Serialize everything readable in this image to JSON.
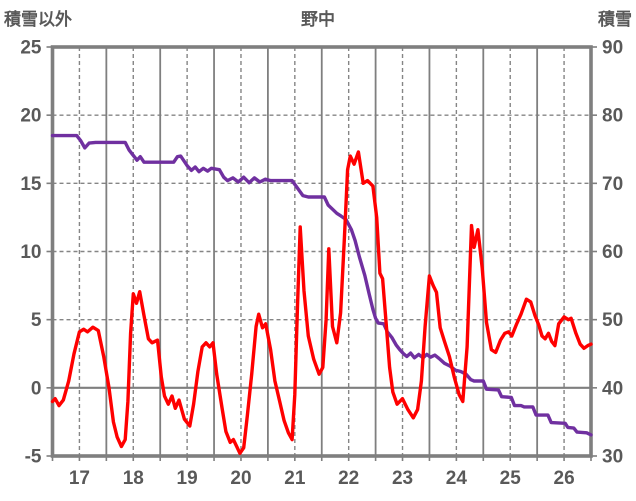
{
  "header": {
    "left_axis_title": "積雪以外",
    "title": "野中",
    "right_axis_title": "積雪"
  },
  "chart_data": {
    "type": "line",
    "title": "野中",
    "grid": "on",
    "legend": "none",
    "colors": {
      "red_series": "#ff0000",
      "purple_series": "#7030a0",
      "grid_solid": "#7f7f7f",
      "grid_dashed": "#858585",
      "border": "#7f7f7f",
      "text": "#595959"
    },
    "x_axis": {
      "min": 16.5,
      "max": 26.5,
      "tick_labels": [
        "17",
        "18",
        "19",
        "20",
        "21",
        "22",
        "23",
        "24",
        "25",
        "26"
      ],
      "tick_values": [
        17,
        18,
        19,
        20,
        21,
        22,
        23,
        24,
        25,
        26
      ],
      "solid_gridlines": [
        17.5,
        18.5,
        19.5,
        20.5,
        21.5,
        22.5,
        23.5,
        24.5,
        25.5
      ],
      "dashed_gridlines": [
        17,
        18,
        19,
        20,
        21,
        22,
        23,
        24,
        25,
        26
      ],
      "outer_tick_step": 0.5
    },
    "left_axis": {
      "label": "積雪以外",
      "min": -5,
      "max": 25,
      "tick_labels": [
        "25",
        "20",
        "15",
        "10",
        "5",
        "0",
        "-5"
      ],
      "tick_values": [
        25,
        20,
        15,
        10,
        5,
        0,
        -5
      ],
      "dashed_gridlines": [
        20,
        15,
        10,
        5
      ],
      "solid_gridlines": [
        0
      ]
    },
    "right_axis": {
      "label": "積雪",
      "min": 30,
      "max": 90,
      "tick_labels": [
        "90",
        "80",
        "70",
        "60",
        "50",
        "40",
        "30"
      ],
      "tick_values": [
        90,
        80,
        70,
        60,
        50,
        40,
        30
      ]
    },
    "series": [
      {
        "name": "積雪",
        "axis": "right",
        "color": "#7030a0",
        "width": 3.4,
        "points": [
          [
            16.5,
            77
          ],
          [
            16.95,
            77
          ],
          [
            17.02,
            76.3
          ],
          [
            17.1,
            75.2
          ],
          [
            17.18,
            75.9
          ],
          [
            17.3,
            76
          ],
          [
            17.85,
            76
          ],
          [
            17.92,
            74.9
          ],
          [
            18.0,
            74.1
          ],
          [
            18.07,
            73.4
          ],
          [
            18.13,
            73.9
          ],
          [
            18.2,
            73.1
          ],
          [
            18.75,
            73.1
          ],
          [
            18.82,
            73.9
          ],
          [
            18.88,
            74.0
          ],
          [
            18.94,
            73.3
          ],
          [
            19.0,
            72.6
          ],
          [
            19.08,
            71.9
          ],
          [
            19.15,
            72.4
          ],
          [
            19.22,
            71.7
          ],
          [
            19.3,
            72.2
          ],
          [
            19.38,
            71.8
          ],
          [
            19.45,
            72.2
          ],
          [
            19.6,
            72.0
          ],
          [
            19.68,
            70.9
          ],
          [
            19.75,
            70.4
          ],
          [
            19.85,
            70.8
          ],
          [
            19.95,
            70.2
          ],
          [
            20.05,
            70.9
          ],
          [
            20.15,
            70.1
          ],
          [
            20.25,
            70.8
          ],
          [
            20.35,
            70.2
          ],
          [
            20.45,
            70.6
          ],
          [
            20.55,
            70.4
          ],
          [
            20.95,
            70.4
          ],
          [
            21.05,
            69.3
          ],
          [
            21.15,
            68.2
          ],
          [
            21.25,
            68.0
          ],
          [
            21.55,
            68.0
          ],
          [
            21.62,
            66.8
          ],
          [
            21.7,
            66.2
          ],
          [
            21.78,
            65.6
          ],
          [
            21.86,
            65.2
          ],
          [
            21.95,
            64.7
          ],
          [
            22.05,
            63.2
          ],
          [
            22.12,
            61.6
          ],
          [
            22.2,
            59.2
          ],
          [
            22.3,
            56.5
          ],
          [
            22.38,
            53.8
          ],
          [
            22.45,
            51.5
          ],
          [
            22.5,
            50.2
          ],
          [
            22.55,
            49.5
          ],
          [
            22.65,
            49.4
          ],
          [
            22.72,
            48.2
          ],
          [
            22.8,
            47.4
          ],
          [
            22.88,
            46.3
          ],
          [
            22.95,
            45.6
          ],
          [
            23.02,
            45.0
          ],
          [
            23.08,
            44.6
          ],
          [
            23.15,
            45.1
          ],
          [
            23.22,
            44.4
          ],
          [
            23.3,
            44.9
          ],
          [
            23.38,
            44.4
          ],
          [
            23.45,
            44.9
          ],
          [
            23.52,
            44.5
          ],
          [
            23.6,
            44.8
          ],
          [
            23.68,
            44.3
          ],
          [
            23.78,
            43.6
          ],
          [
            23.88,
            43.2
          ],
          [
            23.98,
            42.6
          ],
          [
            24.08,
            42.4
          ],
          [
            24.18,
            42.0
          ],
          [
            24.27,
            41.2
          ],
          [
            24.33,
            41.0
          ],
          [
            24.5,
            41.0
          ],
          [
            24.56,
            39.8
          ],
          [
            24.78,
            39.7
          ],
          [
            24.84,
            38.7
          ],
          [
            25.02,
            38.6
          ],
          [
            25.08,
            37.4
          ],
          [
            25.2,
            37.4
          ],
          [
            25.26,
            37.2
          ],
          [
            25.42,
            37.2
          ],
          [
            25.48,
            36.0
          ],
          [
            25.7,
            36.0
          ],
          [
            25.76,
            34.9
          ],
          [
            26.02,
            34.8
          ],
          [
            26.07,
            34.2
          ],
          [
            26.18,
            34.1
          ],
          [
            26.24,
            33.5
          ],
          [
            26.42,
            33.4
          ],
          [
            26.5,
            33.1
          ]
        ]
      },
      {
        "name": "積雪以外",
        "axis": "left",
        "color": "#ff0000",
        "width": 3.4,
        "points": [
          [
            16.5,
            -1.0
          ],
          [
            16.55,
            -0.8
          ],
          [
            16.62,
            -1.3
          ],
          [
            16.7,
            -0.9
          ],
          [
            16.8,
            0.5
          ],
          [
            16.9,
            2.5
          ],
          [
            17.0,
            4.1
          ],
          [
            17.08,
            4.3
          ],
          [
            17.15,
            4.1
          ],
          [
            17.25,
            4.45
          ],
          [
            17.35,
            4.2
          ],
          [
            17.45,
            2.3
          ],
          [
            17.55,
            0.0
          ],
          [
            17.63,
            -2.5
          ],
          [
            17.7,
            -3.6
          ],
          [
            17.78,
            -4.3
          ],
          [
            17.85,
            -3.8
          ],
          [
            17.9,
            -1.0
          ],
          [
            17.95,
            4.0
          ],
          [
            18.0,
            6.9
          ],
          [
            18.06,
            6.2
          ],
          [
            18.12,
            7.05
          ],
          [
            18.2,
            5.3
          ],
          [
            18.28,
            3.6
          ],
          [
            18.35,
            3.3
          ],
          [
            18.45,
            3.5
          ],
          [
            18.52,
            0.8
          ],
          [
            18.58,
            -0.6
          ],
          [
            18.65,
            -1.2
          ],
          [
            18.72,
            -0.6
          ],
          [
            18.78,
            -1.5
          ],
          [
            18.85,
            -0.9
          ],
          [
            18.95,
            -2.3
          ],
          [
            19.05,
            -2.8
          ],
          [
            19.12,
            -1.2
          ],
          [
            19.2,
            1.2
          ],
          [
            19.28,
            3.0
          ],
          [
            19.35,
            3.3
          ],
          [
            19.42,
            3.0
          ],
          [
            19.48,
            3.3
          ],
          [
            19.55,
            1.0
          ],
          [
            19.65,
            -1.5
          ],
          [
            19.72,
            -3.2
          ],
          [
            19.8,
            -4.0
          ],
          [
            19.86,
            -3.8
          ],
          [
            19.92,
            -4.3
          ],
          [
            19.98,
            -4.8
          ],
          [
            20.05,
            -4.4
          ],
          [
            20.12,
            -2.0
          ],
          [
            20.2,
            1.0
          ],
          [
            20.28,
            4.5
          ],
          [
            20.33,
            5.4
          ],
          [
            20.4,
            4.4
          ],
          [
            20.46,
            4.7
          ],
          [
            20.55,
            2.8
          ],
          [
            20.63,
            0.5
          ],
          [
            20.72,
            -1.0
          ],
          [
            20.8,
            -2.4
          ],
          [
            20.88,
            -3.3
          ],
          [
            20.95,
            -3.8
          ],
          [
            21.0,
            -0.5
          ],
          [
            21.05,
            6.0
          ],
          [
            21.1,
            11.8
          ],
          [
            21.17,
            7.1
          ],
          [
            21.25,
            3.8
          ],
          [
            21.35,
            2.1
          ],
          [
            21.45,
            1.0
          ],
          [
            21.52,
            1.5
          ],
          [
            21.58,
            5.0
          ],
          [
            21.63,
            10.2
          ],
          [
            21.7,
            4.5
          ],
          [
            21.78,
            3.3
          ],
          [
            21.85,
            5.5
          ],
          [
            21.92,
            11.0
          ],
          [
            21.98,
            16.0
          ],
          [
            22.03,
            17.0
          ],
          [
            22.1,
            16.4
          ],
          [
            22.18,
            17.3
          ],
          [
            22.27,
            15.0
          ],
          [
            22.35,
            15.2
          ],
          [
            22.45,
            14.8
          ],
          [
            22.52,
            12.5
          ],
          [
            22.58,
            8.4
          ],
          [
            22.63,
            8.0
          ],
          [
            22.7,
            4.5
          ],
          [
            22.76,
            1.5
          ],
          [
            22.82,
            -0.3
          ],
          [
            22.9,
            -1.2
          ],
          [
            23.0,
            -0.8
          ],
          [
            23.1,
            -1.6
          ],
          [
            23.2,
            -2.2
          ],
          [
            23.28,
            -1.6
          ],
          [
            23.35,
            0.5
          ],
          [
            23.42,
            4.5
          ],
          [
            23.5,
            8.2
          ],
          [
            23.57,
            7.5
          ],
          [
            23.63,
            7.0
          ],
          [
            23.7,
            4.4
          ],
          [
            23.78,
            3.4
          ],
          [
            23.87,
            2.3
          ],
          [
            23.96,
            0.8
          ],
          [
            24.05,
            -0.5
          ],
          [
            24.12,
            -1.0
          ],
          [
            24.2,
            3.0
          ],
          [
            24.28,
            11.9
          ],
          [
            24.33,
            10.3
          ],
          [
            24.4,
            11.6
          ],
          [
            24.48,
            8.8
          ],
          [
            24.56,
            4.8
          ],
          [
            24.65,
            2.8
          ],
          [
            24.73,
            2.6
          ],
          [
            24.82,
            3.5
          ],
          [
            24.9,
            4.0
          ],
          [
            24.97,
            4.1
          ],
          [
            25.03,
            3.8
          ],
          [
            25.12,
            4.7
          ],
          [
            25.2,
            5.4
          ],
          [
            25.3,
            6.5
          ],
          [
            25.38,
            6.3
          ],
          [
            25.46,
            5.3
          ],
          [
            25.53,
            4.6
          ],
          [
            25.59,
            3.8
          ],
          [
            25.65,
            3.6
          ],
          [
            25.71,
            4.0
          ],
          [
            25.77,
            3.4
          ],
          [
            25.83,
            3.1
          ],
          [
            25.9,
            4.7
          ],
          [
            26.0,
            5.2
          ],
          [
            26.08,
            5.0
          ],
          [
            26.13,
            5.1
          ],
          [
            26.22,
            4.0
          ],
          [
            26.3,
            3.2
          ],
          [
            26.37,
            2.9
          ],
          [
            26.44,
            3.1
          ],
          [
            26.5,
            3.2
          ]
        ]
      }
    ]
  }
}
